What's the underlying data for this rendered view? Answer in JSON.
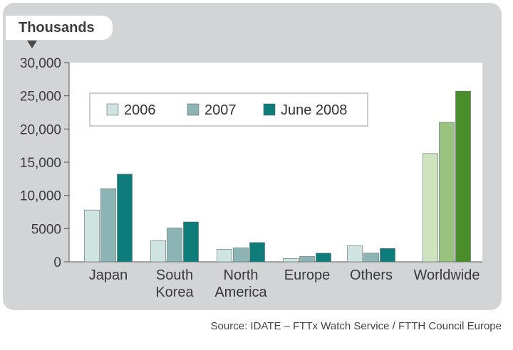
{
  "unit_label": "Thousands",
  "source": "Source: IDATE – FTTx Watch Service / FTTH Council Europe",
  "chart_data": {
    "type": "bar",
    "categories": [
      [
        "Japan"
      ],
      [
        "South",
        "Korea"
      ],
      [
        "North",
        "America"
      ],
      [
        "Europe"
      ],
      [
        "Others"
      ],
      [
        "Worldwide"
      ]
    ],
    "series": [
      {
        "name": "2006",
        "values": [
          7800,
          3200,
          1900,
          500,
          2400,
          16300
        ]
      },
      {
        "name": "2007",
        "values": [
          11000,
          5100,
          2100,
          800,
          1300,
          21000
        ]
      },
      {
        "name": "June 2008",
        "values": [
          13200,
          6000,
          2900,
          1300,
          2000,
          25700
        ]
      }
    ],
    "ylim": [
      0,
      30000
    ],
    "yticks": [
      "0",
      "5000",
      "10,000",
      "15,000",
      "20,000",
      "25,000",
      "30,000"
    ],
    "ytick_values": [
      0,
      5000,
      10000,
      15000,
      20000,
      25000,
      30000
    ],
    "colors": {
      "default": [
        "#cfe3e1",
        "#8db4b4",
        "#0e7c7b"
      ],
      "Worldwide": [
        "#cde4bf",
        "#99c27f",
        "#4a8e2b"
      ]
    },
    "legend_position": "top-left",
    "grid": false
  }
}
